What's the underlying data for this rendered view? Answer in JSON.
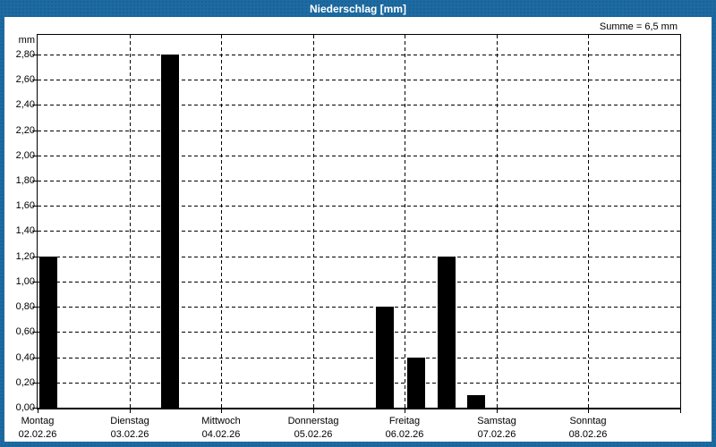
{
  "window": {
    "title": "Niederschlag [mm]"
  },
  "colors": {
    "frame_blue": "#1d6ba2",
    "title_text": "#ffffff",
    "plot_background": "#ffffff",
    "bar_color": "#000000",
    "axis_color": "#000000"
  },
  "chart_data": {
    "type": "bar",
    "title": "Niederschlag [mm]",
    "ylabel": "mm",
    "summary": "Summe = 6,5 mm",
    "total_mm": 6.5,
    "ylim": [
      0,
      2.955
    ],
    "ytick_step": 0.2,
    "ytick_labels": [
      "0,00",
      "0,20",
      "0,40",
      "0,60",
      "0,80",
      "1,00",
      "1,20",
      "1,40",
      "1,60",
      "1,80",
      "2,00",
      "2,20",
      "2,40",
      "2,60",
      "2,80"
    ],
    "grid": "dashed",
    "legend": "none",
    "days": [
      {
        "name": "Montag",
        "date": "02.02.26"
      },
      {
        "name": "Dienstag",
        "date": "03.02.26"
      },
      {
        "name": "Mittwoch",
        "date": "04.02.26"
      },
      {
        "name": "Donnerstag",
        "date": "05.02.26"
      },
      {
        "name": "Freitag",
        "date": "06.02.26"
      },
      {
        "name": "Samstag",
        "date": "07.02.26"
      },
      {
        "name": "Sonntag",
        "date": "08.02.26"
      }
    ],
    "bar_width_frac": 0.195,
    "bars": [
      {
        "day": "Montag",
        "date": "02.02.26",
        "day_index": 0,
        "start_frac": 0.02,
        "value": 1.2
      },
      {
        "day": "Dienstag",
        "date": "03.02.26",
        "day_index": 1,
        "start_frac": 0.35,
        "value": 2.8
      },
      {
        "day": "Donnerstag",
        "date": "05.02.26",
        "day_index": 3,
        "start_frac": 0.69,
        "value": 0.8
      },
      {
        "day": "Freitag",
        "date": "06.02.26",
        "day_index": 4,
        "start_frac": 0.03,
        "value": 0.4
      },
      {
        "day": "Freitag",
        "date": "06.02.26",
        "day_index": 4,
        "start_frac": 0.36,
        "value": 1.2
      },
      {
        "day": "Freitag",
        "date": "06.02.26",
        "day_index": 4,
        "start_frac": 0.68,
        "value": 0.1
      }
    ]
  }
}
